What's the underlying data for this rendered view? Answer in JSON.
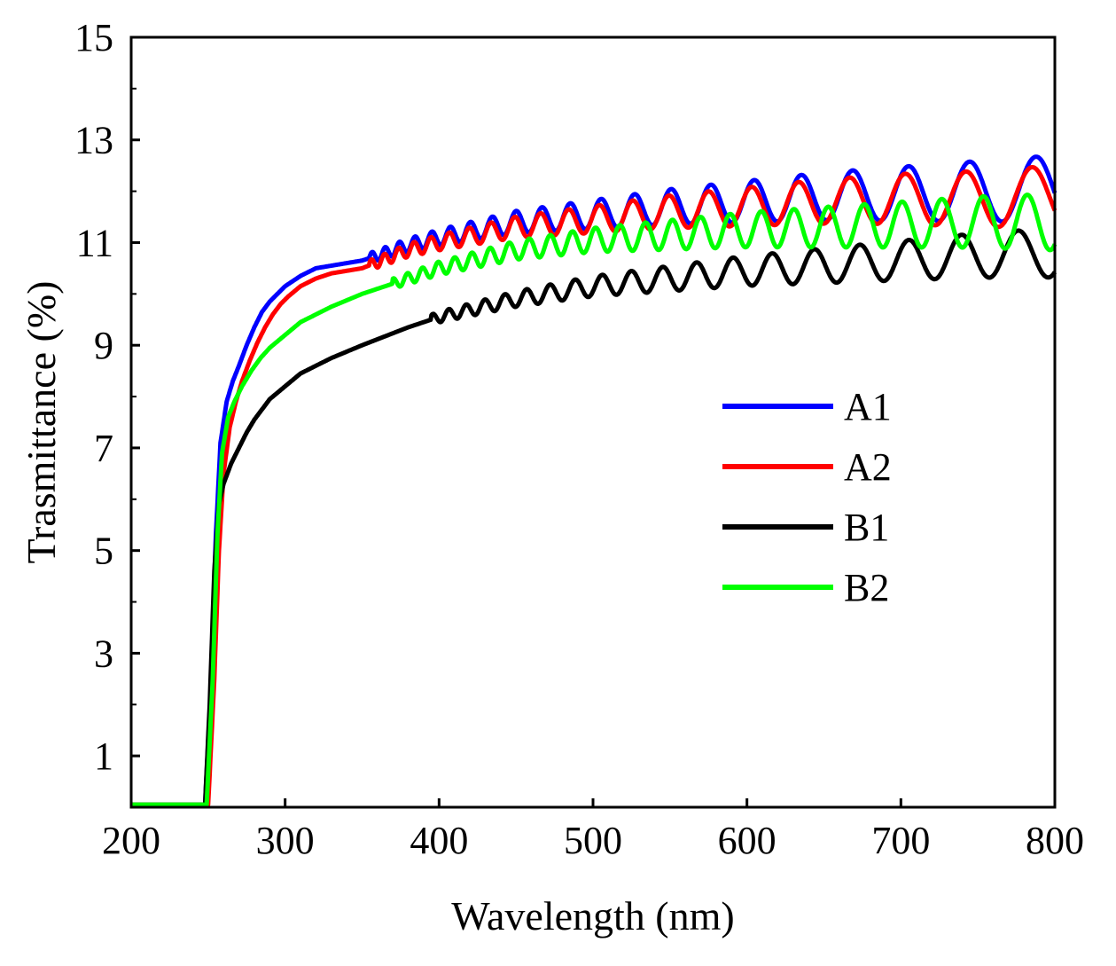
{
  "chart_data": {
    "type": "line",
    "title": "",
    "xlabel": "Wavelength (nm)",
    "ylabel": "Trasmittance (%)",
    "xlim": [
      200,
      800
    ],
    "ylim": [
      0,
      15
    ],
    "xticks": [
      200,
      300,
      400,
      500,
      600,
      700,
      800
    ],
    "yticks": [
      1,
      3,
      5,
      7,
      9,
      11,
      13,
      15
    ],
    "grid": false,
    "legend_position": "center-right",
    "series": [
      {
        "name": "A1",
        "color": "#0000ff",
        "x": [
          200,
          248,
          252,
          255,
          258,
          262,
          266,
          270,
          275,
          280,
          285,
          290,
          295,
          300,
          310,
          320,
          330,
          350,
          380,
          400,
          450,
          500,
          550,
          600,
          650,
          700,
          750,
          800
        ],
        "y": [
          0.05,
          0.05,
          2.5,
          5.3,
          7.1,
          7.9,
          8.3,
          8.6,
          9.0,
          9.35,
          9.65,
          9.85,
          10.0,
          10.15,
          10.35,
          10.5,
          10.55,
          10.65,
          10.95,
          11.1,
          11.4,
          11.55,
          11.7,
          11.8,
          11.9,
          11.95,
          12.0,
          12.05
        ],
        "oscillation": {
          "start": 355,
          "amplitude_start": 0.1,
          "amplitude_end": 0.65,
          "period_start": 8,
          "period_end": 46
        }
      },
      {
        "name": "A2",
        "color": "#ff0000",
        "x": [
          200,
          250,
          254,
          257,
          260,
          264,
          268,
          272,
          277,
          282,
          287,
          292,
          297,
          302,
          310,
          320,
          330,
          350,
          380,
          400,
          450,
          500,
          550,
          600,
          650,
          700,
          750,
          800
        ],
        "y": [
          0.05,
          0.05,
          2.5,
          5.0,
          6.5,
          7.4,
          7.9,
          8.3,
          8.7,
          9.05,
          9.35,
          9.6,
          9.8,
          9.95,
          10.15,
          10.3,
          10.4,
          10.5,
          10.85,
          11.0,
          11.3,
          11.45,
          11.6,
          11.7,
          11.8,
          11.85,
          11.85,
          11.9
        ],
        "oscillation": {
          "start": 355,
          "amplitude_start": 0.1,
          "amplitude_end": 0.6,
          "period_start": 8,
          "period_end": 46
        }
      },
      {
        "name": "B1",
        "color": "#000000",
        "x": [
          200,
          248,
          251,
          254,
          257,
          260,
          265,
          270,
          275,
          280,
          290,
          300,
          310,
          320,
          330,
          350,
          380,
          400,
          450,
          500,
          550,
          600,
          650,
          700,
          750,
          800
        ],
        "y": [
          0.05,
          0.05,
          2.0,
          4.6,
          5.9,
          6.3,
          6.7,
          7.0,
          7.3,
          7.55,
          7.95,
          8.2,
          8.45,
          8.6,
          8.75,
          9.0,
          9.35,
          9.55,
          9.9,
          10.15,
          10.3,
          10.45,
          10.55,
          10.65,
          10.75,
          10.8
        ],
        "oscillation": {
          "start": 395,
          "amplitude_start": 0.1,
          "amplitude_end": 0.48,
          "period_start": 10,
          "period_end": 40
        }
      },
      {
        "name": "B2",
        "color": "#00ff00",
        "x": [
          200,
          249,
          253,
          256,
          259,
          263,
          267,
          272,
          278,
          284,
          290,
          300,
          310,
          320,
          330,
          350,
          380,
          400,
          450,
          500,
          550,
          600,
          650,
          700,
          750,
          800
        ],
        "y": [
          0.05,
          0.05,
          2.5,
          5.3,
          6.9,
          7.6,
          7.9,
          8.2,
          8.5,
          8.75,
          8.95,
          9.2,
          9.45,
          9.6,
          9.75,
          10.0,
          10.3,
          10.5,
          10.85,
          11.05,
          11.15,
          11.25,
          11.3,
          11.35,
          11.4,
          11.4
        ],
        "oscillation": {
          "start": 370,
          "amplitude_start": 0.1,
          "amplitude_end": 0.55,
          "period_start": 9,
          "period_end": 30
        }
      }
    ]
  }
}
